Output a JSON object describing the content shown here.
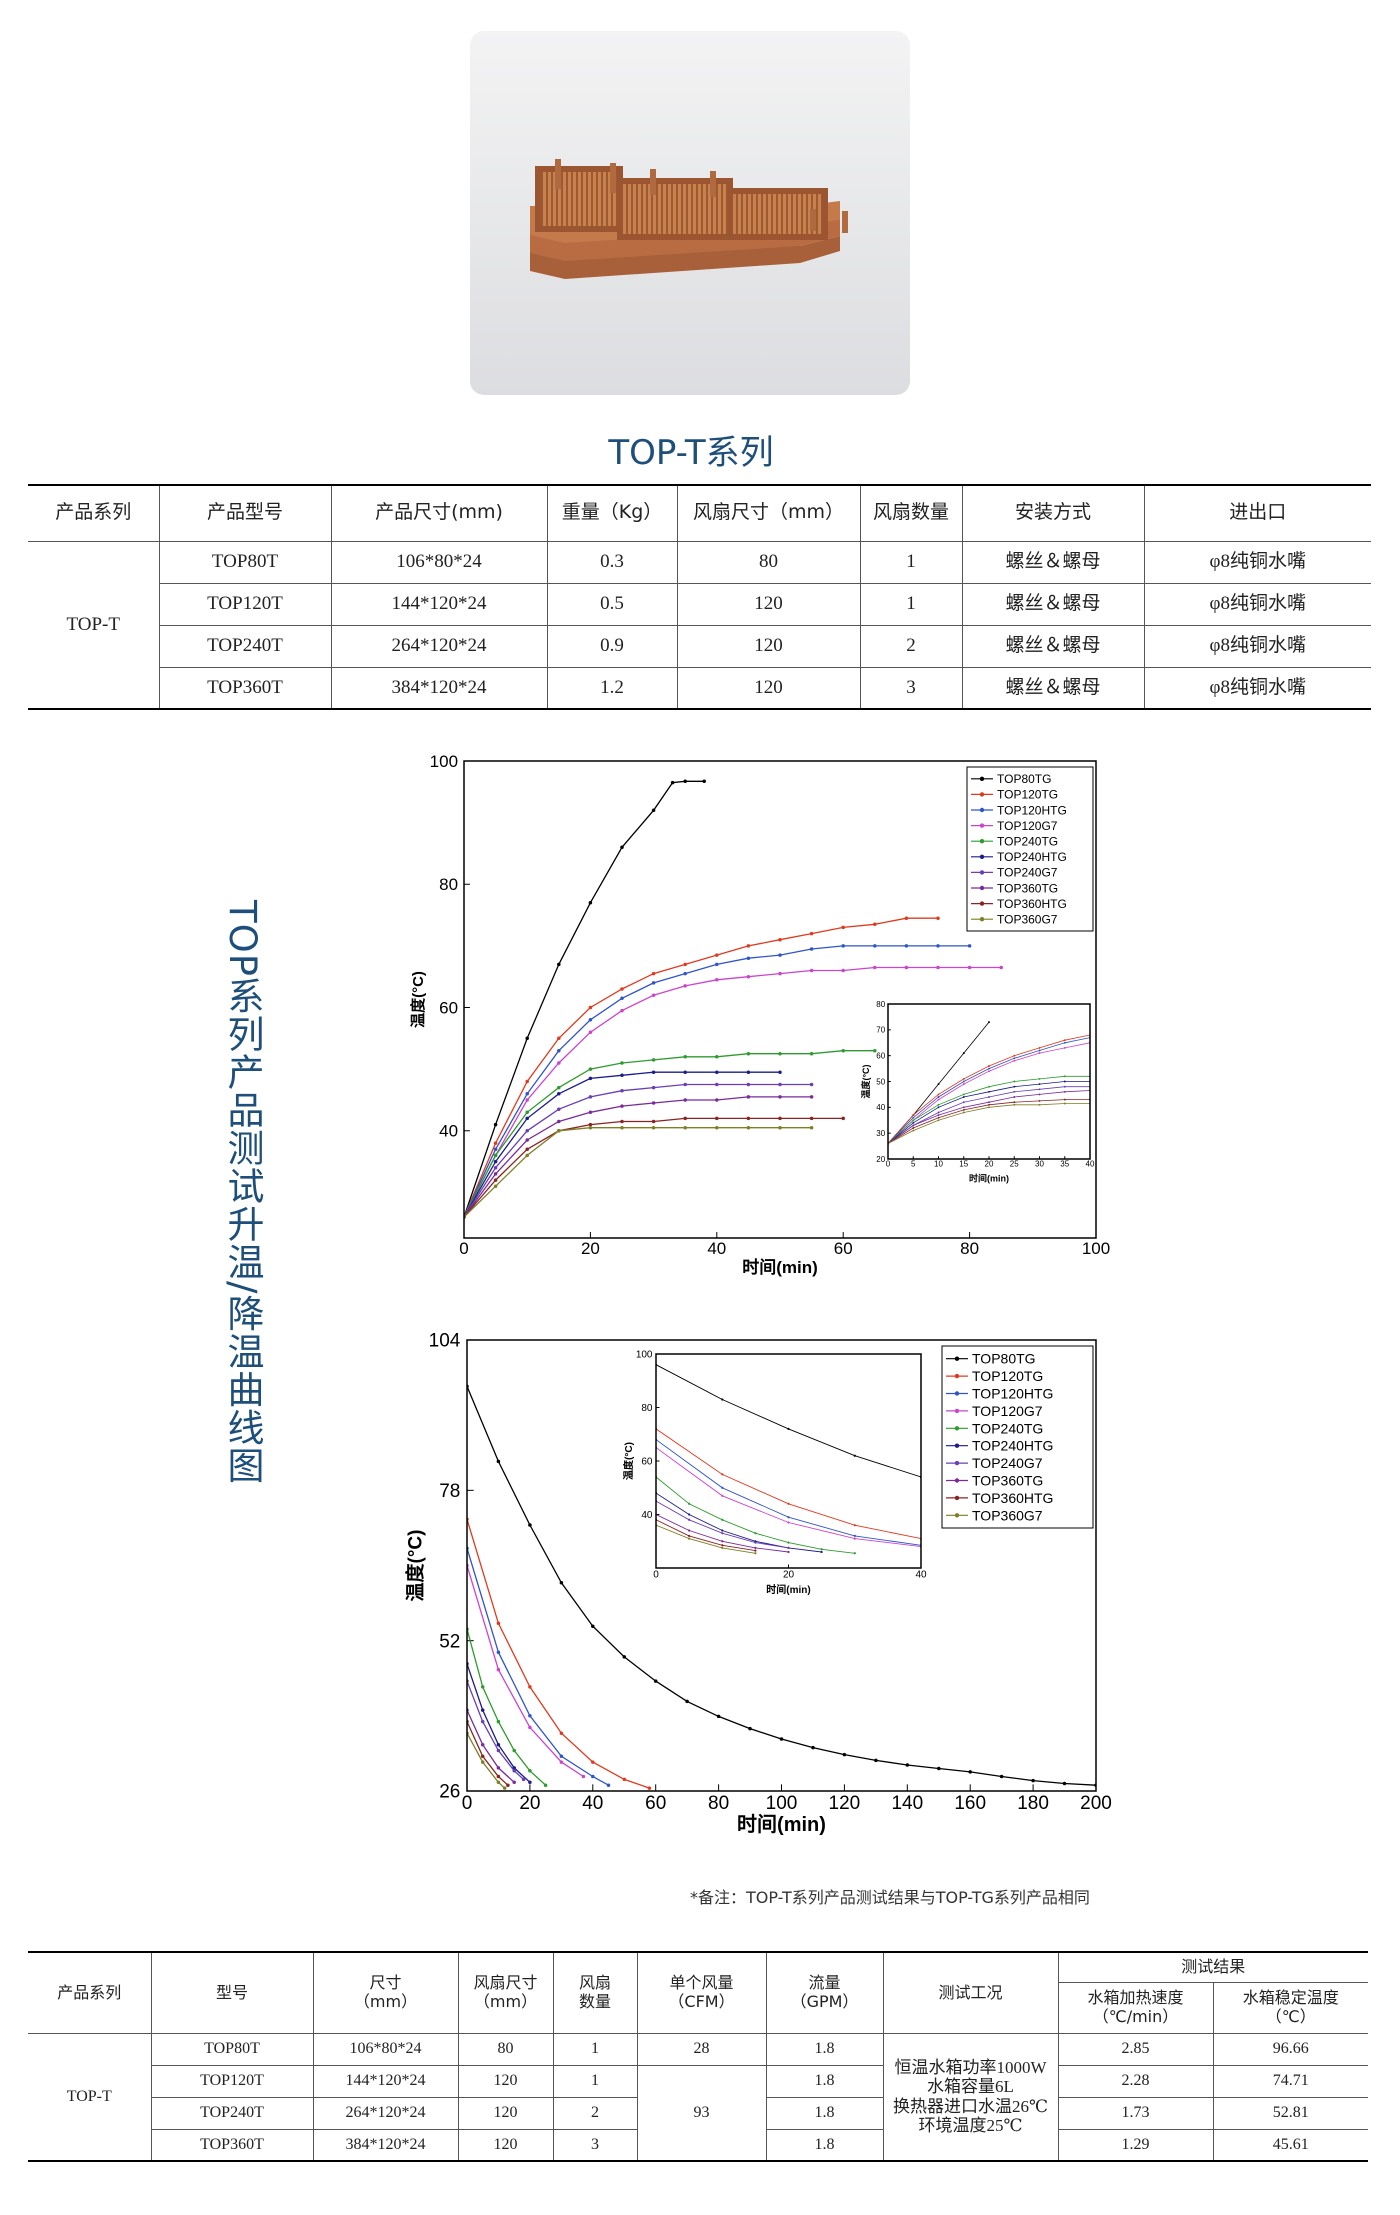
{
  "header": {
    "title": "TOP-T系列"
  },
  "table1": {
    "header": [
      "产品系列",
      "产品型号",
      "产品尺寸(mm)",
      "重量（Kg）",
      "风扇尺寸（mm）",
      "风扇数量",
      "安装方式",
      "进出口"
    ],
    "series": "TOP-T",
    "rows": [
      [
        "TOP80T",
        "106*80*24",
        "0.3",
        "80",
        "1",
        "螺丝＆螺母",
        "φ8纯铜水嘴"
      ],
      [
        "TOP120T",
        "144*120*24",
        "0.5",
        "120",
        "1",
        "螺丝＆螺母",
        "φ8纯铜水嘴"
      ],
      [
        "TOP240T",
        "264*120*24",
        "0.9",
        "120",
        "2",
        "螺丝＆螺母",
        "φ8纯铜水嘴"
      ],
      [
        "TOP360T",
        "384*120*24",
        "1.2",
        "120",
        "3",
        "螺丝＆螺母",
        "φ8纯铜水嘴"
      ]
    ]
  },
  "side_title": "TOP系列产品测试升温/降温曲线图",
  "chart_data": [
    {
      "type": "line",
      "xlabel": "时间(min)",
      "ylabel": "温度(°C)",
      "xlim": [
        0,
        100
      ],
      "ylim": [
        22.6,
        100
      ],
      "xticks": [
        0,
        20,
        40,
        60,
        80,
        100
      ],
      "yticks": [
        40,
        60,
        80,
        100
      ],
      "legend": "upper right",
      "series": [
        {
          "name": "TOP80TG",
          "color": "#000000",
          "x": [
            0,
            5,
            10,
            15,
            20,
            25,
            30,
            33,
            35,
            38
          ],
          "values": [
            26,
            41,
            55,
            67,
            77,
            86,
            92,
            96.5,
            96.7,
            96.7
          ]
        },
        {
          "name": "TOP120TG",
          "color": "#e03a1e",
          "x": [
            0,
            5,
            10,
            15,
            20,
            25,
            30,
            35,
            40,
            45,
            50,
            55,
            60,
            65,
            70,
            75
          ],
          "values": [
            26,
            38,
            48,
            55,
            60,
            63,
            65.5,
            67,
            68.5,
            70,
            71,
            72,
            73,
            73.5,
            74.5,
            74.5
          ]
        },
        {
          "name": "TOP120HTG",
          "color": "#2f55c8",
          "x": [
            0,
            5,
            10,
            15,
            20,
            25,
            30,
            35,
            40,
            45,
            50,
            55,
            60,
            65,
            70,
            75,
            80
          ],
          "values": [
            26,
            37,
            46,
            53,
            58,
            61.5,
            64,
            65.5,
            67,
            68,
            68.5,
            69.5,
            70,
            70,
            70,
            70,
            70
          ]
        },
        {
          "name": "TOP120G7",
          "color": "#cc44cc",
          "x": [
            0,
            5,
            10,
            15,
            20,
            25,
            30,
            35,
            40,
            45,
            50,
            55,
            60,
            65,
            70,
            75,
            80,
            85
          ],
          "values": [
            26,
            36,
            45,
            51,
            56,
            59.5,
            62,
            63.5,
            64.5,
            65,
            65.5,
            66,
            66,
            66.5,
            66.5,
            66.5,
            66.5,
            66.5
          ]
        },
        {
          "name": "TOP240TG",
          "color": "#2e9b2e",
          "x": [
            0,
            5,
            10,
            15,
            20,
            25,
            30,
            35,
            40,
            45,
            50,
            55,
            60,
            65
          ],
          "values": [
            26,
            36,
            43,
            47,
            50,
            51,
            51.5,
            52,
            52,
            52.5,
            52.5,
            52.5,
            53,
            53
          ]
        },
        {
          "name": "TOP240HTG",
          "color": "#1c1c8c",
          "x": [
            0,
            5,
            10,
            15,
            20,
            25,
            30,
            35,
            40,
            45,
            50
          ],
          "values": [
            26,
            35,
            42,
            46,
            48.5,
            49,
            49.5,
            49.5,
            49.5,
            49.5,
            49.5
          ]
        },
        {
          "name": "TOP240G7",
          "color": "#6a3fb5",
          "x": [
            0,
            5,
            10,
            15,
            20,
            25,
            30,
            35,
            40,
            45,
            50,
            55
          ],
          "values": [
            26,
            34,
            40,
            43.5,
            45.5,
            46.5,
            47,
            47.5,
            47.5,
            47.5,
            47.5,
            47.5
          ]
        },
        {
          "name": "TOP360TG",
          "color": "#7a2b9a",
          "x": [
            0,
            5,
            10,
            15,
            20,
            25,
            30,
            35,
            40,
            45,
            50,
            55
          ],
          "values": [
            26,
            33,
            38.5,
            41.5,
            43,
            44,
            44.5,
            45,
            45,
            45.5,
            45.5,
            45.5
          ]
        },
        {
          "name": "TOP360HTG",
          "color": "#8b2323",
          "x": [
            0,
            5,
            10,
            15,
            20,
            25,
            30,
            35,
            40,
            45,
            50,
            55,
            60
          ],
          "values": [
            26,
            32,
            37,
            40,
            41,
            41.5,
            41.5,
            42,
            42,
            42,
            42,
            42,
            42
          ]
        },
        {
          "name": "TOP360G7",
          "color": "#7f7f26",
          "x": [
            0,
            5,
            10,
            15,
            20,
            25,
            30,
            35,
            40,
            45,
            50,
            55
          ],
          "values": [
            26,
            31,
            36,
            40,
            40.5,
            40.5,
            40.5,
            40.5,
            40.5,
            40.5,
            40.5,
            40.5
          ]
        }
      ]
    },
    {
      "type": "line",
      "xlabel": "时间(min)",
      "ylabel": "温度(°C)",
      "xlim": [
        0,
        40
      ],
      "ylim": [
        20,
        80
      ],
      "xticks": [
        0,
        5,
        10,
        15,
        20,
        25,
        30,
        35,
        40
      ],
      "yticks": [
        20,
        30,
        40,
        50,
        60,
        70,
        80
      ],
      "series": [
        {
          "color": "#000000",
          "x": [
            0,
            5,
            10,
            15,
            20
          ],
          "values": [
            26,
            37,
            49,
            61,
            73
          ]
        },
        {
          "color": "#e03a1e",
          "x": [
            0,
            5,
            10,
            15,
            20,
            25,
            30,
            35,
            40
          ],
          "values": [
            26,
            37,
            45,
            51,
            56,
            60,
            63,
            66,
            68
          ]
        },
        {
          "color": "#2f55c8",
          "x": [
            0,
            5,
            10,
            15,
            20,
            25,
            30,
            35,
            40
          ],
          "values": [
            26,
            36,
            44,
            50,
            55,
            59,
            62,
            65,
            67
          ]
        },
        {
          "color": "#cc44cc",
          "x": [
            0,
            5,
            10,
            15,
            20,
            25,
            30,
            35,
            40
          ],
          "values": [
            26,
            35,
            43,
            49,
            54,
            58,
            61,
            63,
            65
          ]
        },
        {
          "color": "#2e9b2e",
          "x": [
            0,
            5,
            10,
            15,
            20,
            25,
            30,
            35,
            40
          ],
          "values": [
            26,
            35,
            41,
            45,
            48,
            50,
            51,
            52,
            52
          ]
        },
        {
          "color": "#1c1c8c",
          "x": [
            0,
            5,
            10,
            15,
            20,
            25,
            30,
            35,
            40
          ],
          "values": [
            26,
            34,
            40,
            44,
            46,
            48,
            49,
            50,
            50
          ]
        },
        {
          "color": "#6a3fb5",
          "x": [
            0,
            5,
            10,
            15,
            20,
            25,
            30,
            35,
            40
          ],
          "values": [
            26,
            33,
            38,
            42,
            44,
            46,
            47,
            48,
            48
          ]
        },
        {
          "color": "#7a2b9a",
          "x": [
            0,
            5,
            10,
            15,
            20,
            25,
            30,
            35,
            40
          ],
          "values": [
            26,
            33,
            37,
            40,
            42,
            44,
            45,
            46,
            46.5
          ]
        },
        {
          "color": "#8b2323",
          "x": [
            0,
            5,
            10,
            15,
            20,
            25,
            30,
            35,
            40
          ],
          "values": [
            26,
            32,
            36,
            39,
            41,
            42,
            42.5,
            43,
            43
          ]
        },
        {
          "color": "#7f7f26",
          "x": [
            0,
            5,
            10,
            15,
            20,
            25,
            30,
            35,
            40
          ],
          "values": [
            26,
            31,
            35,
            38,
            40,
            41,
            41,
            41.5,
            41.5
          ]
        }
      ]
    },
    {
      "type": "line",
      "xlabel": "时间(min)",
      "ylabel": "温度(°C)",
      "xlim": [
        0,
        200
      ],
      "ylim": [
        26,
        104
      ],
      "xticks": [
        0,
        20,
        40,
        60,
        80,
        100,
        120,
        140,
        160,
        180,
        200
      ],
      "yticks": [
        26,
        52,
        78,
        104
      ],
      "legend": "upper right",
      "series": [
        {
          "name": "TOP80TG",
          "color": "#000000",
          "x": [
            0,
            10,
            20,
            30,
            40,
            50,
            60,
            70,
            80,
            90,
            100,
            110,
            120,
            130,
            140,
            150,
            160,
            170,
            180,
            190,
            200
          ],
          "values": [
            96,
            83,
            72,
            62,
            54.5,
            49.2,
            45,
            41.5,
            38.9,
            36.8,
            35,
            33.5,
            32.3,
            31.3,
            30.5,
            29.9,
            29.3,
            28.5,
            27.8,
            27.3,
            27
          ]
        },
        {
          "name": "TOP120TG",
          "color": "#e03a1e",
          "x": [
            0,
            10,
            20,
            30,
            40,
            50,
            58
          ],
          "values": [
            73,
            55,
            44,
            36,
            31,
            28,
            26.5
          ]
        },
        {
          "name": "TOP120HTG",
          "color": "#2f55c8",
          "x": [
            0,
            10,
            20,
            30,
            40,
            45
          ],
          "values": [
            68,
            50,
            39,
            32,
            28.5,
            27
          ]
        },
        {
          "name": "TOP120G7",
          "color": "#cc44cc",
          "x": [
            0,
            10,
            20,
            30,
            37
          ],
          "values": [
            65,
            47,
            37,
            31,
            28.5
          ]
        },
        {
          "name": "TOP240TG",
          "color": "#2e9b2e",
          "x": [
            0,
            5,
            10,
            15,
            20,
            25
          ],
          "values": [
            54,
            44,
            38,
            33,
            29.5,
            27
          ]
        },
        {
          "name": "TOP240HTG",
          "color": "#1c1c8c",
          "x": [
            0,
            5,
            10,
            15,
            20
          ],
          "values": [
            48,
            40,
            34,
            30,
            27.5
          ]
        },
        {
          "name": "TOP240G7",
          "color": "#6a3fb5",
          "x": [
            0,
            5,
            10,
            15,
            18
          ],
          "values": [
            45,
            38,
            33,
            29.5,
            28
          ]
        },
        {
          "name": "TOP360TG",
          "color": "#7a2b9a",
          "x": [
            0,
            5,
            10,
            15
          ],
          "values": [
            40,
            34,
            30,
            27.5
          ]
        },
        {
          "name": "TOP360HTG",
          "color": "#8b2323",
          "x": [
            0,
            5,
            10,
            13
          ],
          "values": [
            38,
            32,
            28.5,
            27
          ]
        },
        {
          "name": "TOP360G7",
          "color": "#7f7f26",
          "x": [
            0,
            5,
            10,
            12
          ],
          "values": [
            36,
            31,
            27.5,
            26.5
          ]
        }
      ]
    },
    {
      "type": "line",
      "xlabel": "时间(min)",
      "ylabel": "温度(°C)",
      "xlim": [
        0,
        40
      ],
      "ylim": [
        20,
        100
      ],
      "xticks": [
        0,
        20,
        40
      ],
      "yticks": [
        40,
        60,
        80,
        100
      ],
      "series": [
        {
          "color": "#000000",
          "x": [
            0,
            10,
            20,
            30,
            40
          ],
          "values": [
            96,
            83,
            72,
            62,
            54
          ]
        },
        {
          "color": "#e03a1e",
          "x": [
            0,
            10,
            20,
            30,
            40
          ],
          "values": [
            72,
            55,
            44,
            36,
            31
          ]
        },
        {
          "color": "#2f55c8",
          "x": [
            0,
            10,
            20,
            30,
            40
          ],
          "values": [
            68,
            50,
            39,
            32,
            28.5
          ]
        },
        {
          "color": "#cc44cc",
          "x": [
            0,
            10,
            20,
            30,
            40
          ],
          "values": [
            65,
            47,
            37,
            31,
            28
          ]
        },
        {
          "color": "#2e9b2e",
          "x": [
            0,
            5,
            10,
            15,
            20,
            25,
            30
          ],
          "values": [
            54,
            44,
            38,
            33,
            29.5,
            27,
            25.5
          ]
        },
        {
          "color": "#1c1c8c",
          "x": [
            0,
            5,
            10,
            15,
            20,
            25
          ],
          "values": [
            48,
            40,
            34,
            30,
            27.5,
            26
          ]
        },
        {
          "color": "#6a3fb5",
          "x": [
            0,
            5,
            10,
            15,
            20
          ],
          "values": [
            45,
            38,
            33,
            29.5,
            27.5
          ]
        },
        {
          "color": "#7a2b9a",
          "x": [
            0,
            5,
            10,
            15,
            20
          ],
          "values": [
            40,
            34,
            30,
            27.5,
            26
          ]
        },
        {
          "color": "#8b2323",
          "x": [
            0,
            5,
            10,
            15
          ],
          "values": [
            38,
            32,
            28.5,
            26.5
          ]
        },
        {
          "color": "#7f7f26",
          "x": [
            0,
            5,
            10,
            15
          ],
          "values": [
            36,
            31,
            27.5,
            25.5
          ]
        }
      ]
    }
  ],
  "note": "*备注：TOP-T系列产品测试结果与TOP-TG系列产品相同",
  "table2": {
    "header": [
      "产品系列",
      "型号",
      "尺寸\n（mm）",
      "风扇尺寸\n（mm）",
      "风扇\n数量",
      "单个风量\n（CFM）",
      "流量\n（GPM）",
      "测试工况",
      "测试结果"
    ],
    "subheader": [
      "水箱加热速度\n（℃/min）",
      "水箱稳定温度\n（℃）"
    ],
    "series": "TOP-T",
    "cfm": [
      "28",
      "93"
    ],
    "condition": "恒温水箱功率1000W\n水箱容量6L\n换热器进口水温26℃\n环境温度25℃",
    "rows": [
      [
        "TOP80T",
        "106*80*24",
        "80",
        "1",
        "1.8",
        "2.85",
        "96.66"
      ],
      [
        "TOP120T",
        "144*120*24",
        "120",
        "1",
        "1.8",
        "2.28",
        "74.71"
      ],
      [
        "TOP240T",
        "264*120*24",
        "120",
        "2",
        "1.8",
        "1.73",
        "52.81"
      ],
      [
        "TOP360T",
        "384*120*24",
        "120",
        "3",
        "1.8",
        "1.29",
        "45.61"
      ]
    ]
  }
}
